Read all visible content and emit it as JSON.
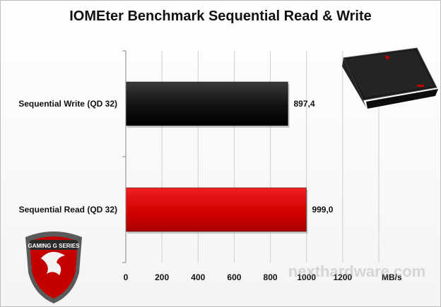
{
  "chart_data": {
    "type": "bar",
    "orientation": "horizontal",
    "title": "IOMEter Benchmark Sequential Read & Write",
    "categories": [
      "Sequential Write (QD 32)",
      "Sequential Read (QD 32)"
    ],
    "values": [
      897.4,
      999.0
    ],
    "value_labels": [
      "897,4",
      "999,0"
    ],
    "bar_colors": [
      "#111111",
      "#d40000"
    ],
    "xlim": [
      0,
      1400
    ],
    "xticks": [
      0,
      200,
      400,
      600,
      800,
      1000,
      1200
    ],
    "xtick_labels": [
      "0",
      "200",
      "400",
      "600",
      "800",
      "1000",
      "1200"
    ],
    "unit": "MB/s",
    "grid": true,
    "legend": "none"
  },
  "decor": {
    "laptop_image": "msi-laptop",
    "badge_logo": "msi-gaming-g-series-dragon-shield",
    "badge_text": "GAMING G SERIES",
    "watermark": "nexthardware.com"
  }
}
